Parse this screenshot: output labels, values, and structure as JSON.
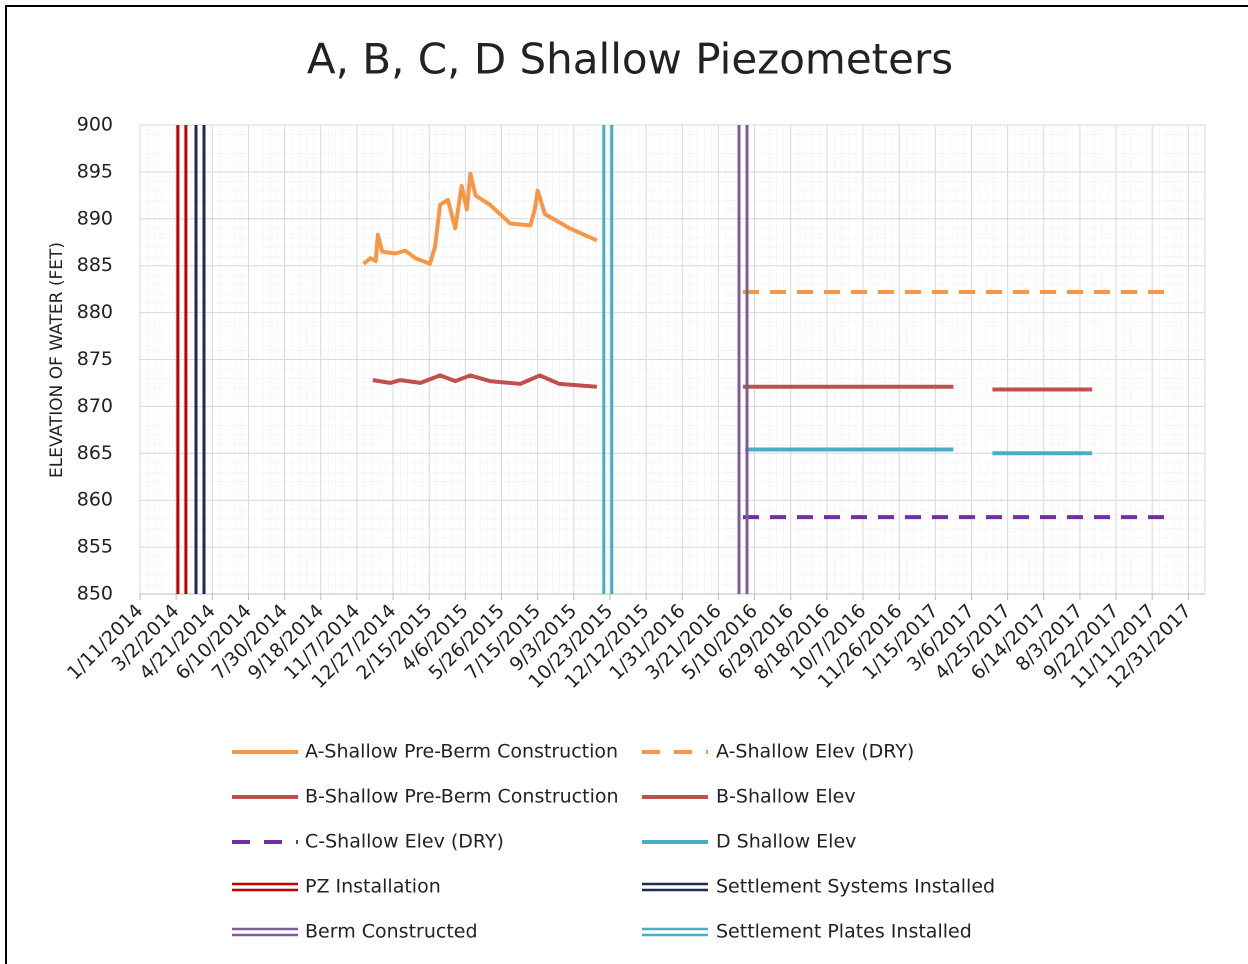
{
  "chart_data": {
    "type": "line",
    "title": "A, B, C, D Shallow Piezometers",
    "y_label": "ELEVATION OF WATER (FET)",
    "xlim": [
      "1/11/2014",
      "1/23/2018"
    ],
    "xticks": [
      "1/11/2014",
      "3/2/2014",
      "4/21/2014",
      "6/10/2014",
      "7/30/2014",
      "9/18/2014",
      "11/7/2014",
      "12/27/2014",
      "2/15/2015",
      "4/6/2015",
      "5/26/2015",
      "7/15/2015",
      "9/3/2015",
      "10/23/2015",
      "12/12/2015",
      "1/31/2016",
      "3/21/2016",
      "5/10/2016",
      "6/29/2016",
      "8/18/2016",
      "10/7/2016",
      "11/26/2016",
      "1/15/2017",
      "3/6/2017",
      "4/25/2017",
      "6/14/2017",
      "8/3/2017",
      "9/22/2017",
      "11/11/2017",
      "12/31/2017"
    ],
    "ylim": [
      850,
      900
    ],
    "yticks": [
      850,
      855,
      860,
      865,
      870,
      875,
      880,
      885,
      890,
      895,
      900
    ],
    "grid": true,
    "series": [
      {
        "name": "A-Shallow Pre-Berm Construction",
        "color": "#f79646",
        "style": "solid",
        "x": [
          "11/16/2014",
          "11/26/2014",
          "12/3/2014",
          "12/6/2014",
          "12/12/2014",
          "12/30/2014",
          "1/13/2015",
          "1/27/2015",
          "2/16/2015",
          "2/23/2015",
          "3/2/2015",
          "3/13/2015",
          "3/23/2015",
          "4/1/2015",
          "4/8/2015",
          "4/13/2015",
          "4/20/2015",
          "5/10/2015",
          "6/7/2015",
          "7/5/2015",
          "7/11/2015",
          "7/15/2015",
          "7/25/2015",
          "8/28/2015",
          "10/5/2015"
        ],
        "values": [
          885.2,
          885.8,
          885.5,
          888.3,
          886.5,
          886.3,
          886.6,
          885.8,
          885.2,
          887,
          891.5,
          892,
          889,
          893.5,
          891,
          894.8,
          892.5,
          891.5,
          889.5,
          889.3,
          891,
          893,
          890.5,
          889,
          887.7
        ]
      },
      {
        "name": "A-Shallow Elev (DRY)",
        "color": "#f79646",
        "style": "dashed",
        "x": [
          "4/24/2016",
          "11/29/2017"
        ],
        "values": [
          882.2,
          882.2
        ]
      },
      {
        "name": "B-Shallow Pre-Berm Construction",
        "color": "#c0504d",
        "style": "solid",
        "x": [
          "11/29/2014",
          "12/23/2014",
          "1/6/2015",
          "2/3/2015",
          "3/2/2015",
          "3/23/2015",
          "4/13/2015",
          "5/10/2015",
          "6/21/2015",
          "7/18/2015",
          "8/14/2015",
          "10/5/2015"
        ],
        "values": [
          872.8,
          872.5,
          872.8,
          872.5,
          873.3,
          872.7,
          873.3,
          872.7,
          872.4,
          873.3,
          872.4,
          872.1
        ]
      },
      {
        "name": "B-Shallow Elev",
        "color": "#c0504d",
        "style": "solid",
        "x": [
          "4/24/2016",
          "2/9/2017",
          "3/1/2017",
          "4/4/2017",
          "8/20/2017"
        ],
        "values": [
          872.1,
          872.1,
          null,
          871.8,
          871.8
        ]
      },
      {
        "name": "C-Shallow Elev (DRY)",
        "color": "#7030a0",
        "style": "dashed",
        "x": [
          "4/24/2016",
          "11/29/2017"
        ],
        "values": [
          858.2,
          858.2
        ]
      },
      {
        "name": "D Shallow Elev",
        "color": "#4bacc6",
        "style": "solid",
        "x": [
          "4/27/2016",
          "2/9/2017",
          "3/1/2017",
          "4/4/2017",
          "8/20/2017"
        ],
        "values": [
          865.4,
          865.4,
          null,
          865.0,
          865.0
        ]
      },
      {
        "name": "PZ Installation",
        "color": "#c00000",
        "style": "double",
        "x": [
          "3/10/2014",
          "3/10/2014"
        ],
        "values": [
          850,
          900
        ]
      },
      {
        "name": "Settlement Systems Installed",
        "color": "#1f2a55",
        "style": "double",
        "x": [
          "4/4/2014",
          "4/4/2014"
        ],
        "values": [
          850,
          900
        ]
      },
      {
        "name": "Berm Constructed",
        "color": "#7b5d99",
        "style": "double",
        "x": [
          "4/24/2016",
          "4/24/2016"
        ],
        "values": [
          850,
          900
        ]
      },
      {
        "name": "Settlement Plates Installed",
        "color": "#4bacc6",
        "style": "double",
        "x": [
          "10/20/2015",
          "10/20/2015"
        ],
        "values": [
          850,
          900
        ]
      }
    ]
  }
}
